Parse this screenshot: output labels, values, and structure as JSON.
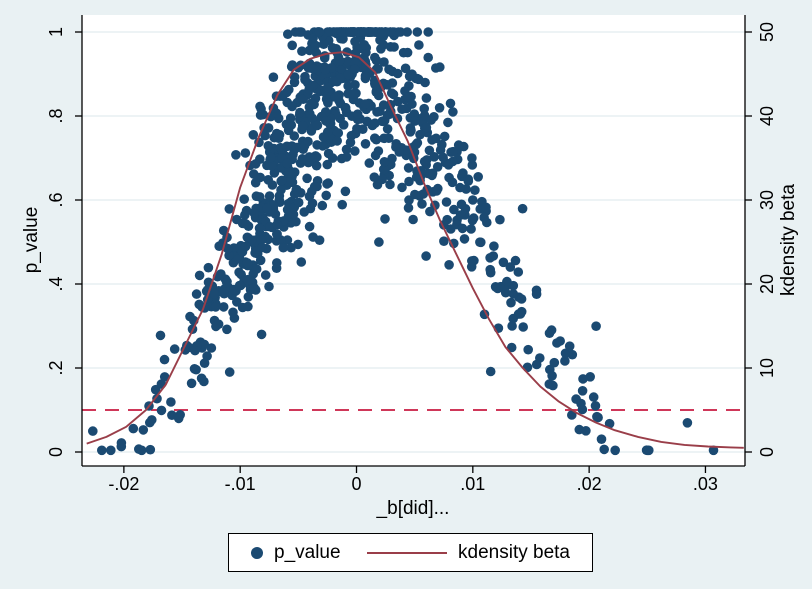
{
  "figure": {
    "background": "#e9f1f3",
    "plot_background": "#ffffff",
    "grid_color": "#e2ecef",
    "axis_color": "#000000",
    "text_color": "#000000"
  },
  "chart_data": {
    "type": "scatter",
    "description": "Placebo/permutation test plot: p-values of each permuted DiD estimate (left axis) with kernel density of the estimates (right axis); dashed reference line at p = 0.1",
    "x_axis": {
      "label": "_b[did]...",
      "range": [
        -0.0236,
        0.0334
      ],
      "ticks": [
        -0.02,
        -0.01,
        0,
        0.01,
        0.02,
        0.03
      ],
      "tick_labels": [
        "-.02",
        "-.01",
        "0",
        ".01",
        ".02",
        ".03"
      ]
    },
    "y_left_axis": {
      "label": "p_value",
      "range": [
        0,
        1
      ],
      "ticks": [
        0,
        0.2,
        0.4,
        0.6,
        0.8,
        1
      ],
      "tick_labels": [
        "0",
        ".2",
        ".4",
        ".6",
        ".8",
        "1"
      ]
    },
    "y_right_axis": {
      "label": "kdensity beta",
      "range": [
        0,
        50
      ],
      "ticks": [
        0,
        10,
        20,
        30,
        40,
        50
      ],
      "tick_labels": [
        "0",
        "10",
        "20",
        "30",
        "40",
        "50"
      ]
    },
    "reference_line": {
      "y": 0.1,
      "axis": "left",
      "style": "dashed",
      "color": "#cf3759"
    },
    "scatter_series": {
      "name": "p_value",
      "color": "#1b4a72",
      "marker": "filled-circle",
      "marker_radius": 4.8,
      "points_model": {
        "note": "~1000 heavily overlapping dots form a tent shape peaking at p=1 near beta=0; cloud regenerated deterministically from this spec",
        "n": 950,
        "seed": 987241,
        "beta_components": [
          {
            "weight": 0.5,
            "mean": -0.002,
            "sd": 0.005
          },
          {
            "weight": 0.2,
            "mean": -0.008,
            "sd": 0.006
          },
          {
            "weight": 0.3,
            "mean": 0.0065,
            "sd": 0.009
          }
        ],
        "beta_min": -0.0232,
        "beta_max": 0.033,
        "p_zero_left": -0.019,
        "p_zero_right": 0.022,
        "noise_mult": 0.16,
        "noise_add": 0.045,
        "outlier_frac": 0.03,
        "outlier_scale": 0.22,
        "p_min": 0.004,
        "p_max": 1.0
      }
    },
    "density_series": {
      "name": "kdensity beta",
      "color": "#9a3e49",
      "axis": "right",
      "points": [
        [
          -0.0232,
          1.0
        ],
        [
          -0.0215,
          1.8
        ],
        [
          -0.0198,
          3.0
        ],
        [
          -0.0181,
          5.0
        ],
        [
          -0.0164,
          8.0
        ],
        [
          -0.0148,
          12.5
        ],
        [
          -0.0132,
          17.0
        ],
        [
          -0.0116,
          23.5
        ],
        [
          -0.01,
          31.5
        ],
        [
          -0.0084,
          37.5
        ],
        [
          -0.0068,
          42.5
        ],
        [
          -0.0054,
          45.5
        ],
        [
          -0.004,
          46.8
        ],
        [
          -0.0026,
          47.4
        ],
        [
          -0.0012,
          47.6
        ],
        [
          0.0002,
          47.0
        ],
        [
          0.0016,
          45.2
        ],
        [
          0.003,
          41.0
        ],
        [
          0.0044,
          37.0
        ],
        [
          0.0058,
          32.0
        ],
        [
          0.0072,
          27.5
        ],
        [
          0.0086,
          23.5
        ],
        [
          0.01,
          19.5
        ],
        [
          0.0114,
          15.8
        ],
        [
          0.0128,
          12.5
        ],
        [
          0.0143,
          10.0
        ],
        [
          0.0158,
          7.8
        ],
        [
          0.0174,
          6.0
        ],
        [
          0.019,
          4.6
        ],
        [
          0.0206,
          3.5
        ],
        [
          0.0222,
          2.6
        ],
        [
          0.0242,
          1.8
        ],
        [
          0.0262,
          1.2
        ],
        [
          0.0282,
          0.85
        ],
        [
          0.0302,
          0.65
        ],
        [
          0.0322,
          0.55
        ],
        [
          0.0333,
          0.5
        ]
      ]
    },
    "legend": {
      "items": [
        {
          "label": "p_value",
          "marker": "dot",
          "color": "#1b4a72"
        },
        {
          "label": "kdensity beta",
          "marker": "line",
          "color": "#9a3e49"
        }
      ]
    }
  }
}
